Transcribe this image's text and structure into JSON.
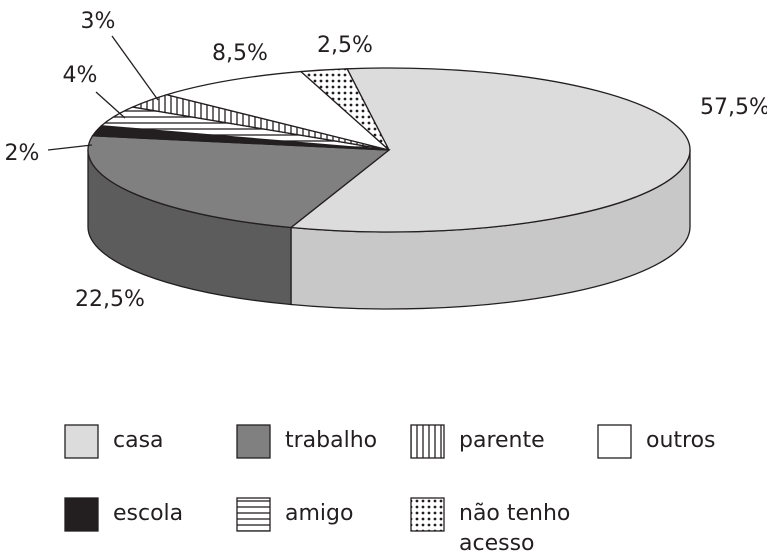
{
  "chart_data": {
    "type": "pie3d",
    "categories": [
      "casa",
      "trabalho",
      "escola",
      "amigo",
      "parente",
      "outros",
      "não tenho acesso"
    ],
    "values": [
      57.5,
      22.5,
      2,
      4,
      3,
      8.5,
      2.5
    ],
    "value_labels": [
      "57,5%",
      "22,5%",
      "2%",
      "4%",
      "3%",
      "8,5%",
      "2,5%"
    ],
    "colors": [
      "#dcdcdc",
      "#808080",
      "#231f20",
      "#231f20",
      "#231f20",
      "#ffffff",
      "#231f20"
    ],
    "patterns": [
      "solid",
      "solid",
      "solid",
      "horizontal",
      "vertical",
      "solid",
      "dots"
    ]
  }
}
